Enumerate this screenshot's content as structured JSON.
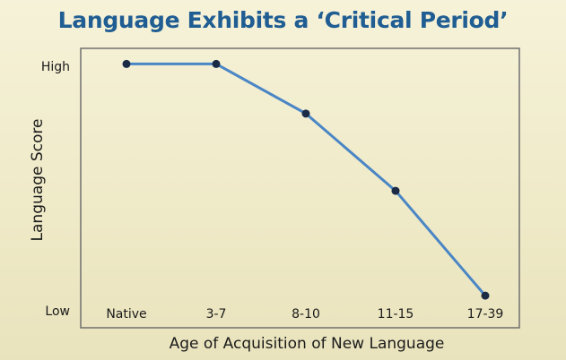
{
  "chart_data": {
    "type": "line",
    "title": "Language Exhibits a ‘Critical Period’",
    "xlabel": "Age of Acquisition of New Language",
    "ylabel": "Language Score",
    "categories": [
      "Native",
      "3-7",
      "8-10",
      "11-15",
      "17-39"
    ],
    "y_tick_labels": [
      "High",
      "Low"
    ],
    "ylim": [
      0,
      100
    ],
    "series": [
      {
        "values": [
          95,
          95,
          77,
          49,
          11
        ]
      }
    ],
    "grid": false,
    "colors": {
      "line": "#4a86c5",
      "marker": "#1b2b45",
      "frame": "#6f6f6f",
      "title": "#1f5d92"
    }
  }
}
